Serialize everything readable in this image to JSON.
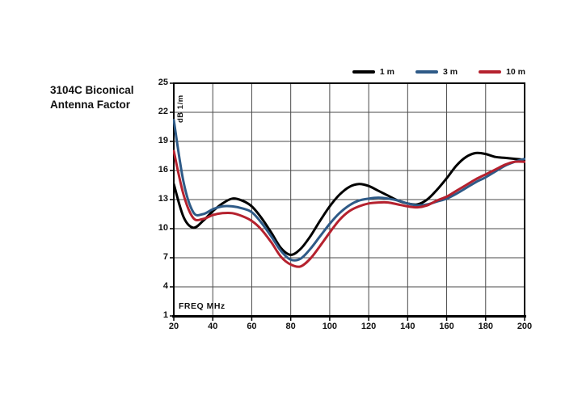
{
  "title": {
    "line1": "3104C Biconical",
    "line2": "Antenna Factor"
  },
  "chart_data": {
    "type": "line",
    "title": "3104C Biconical Antenna Factor",
    "xlabel": "FREQ MHz",
    "ylabel": "dB 1/m",
    "xlim": [
      20,
      200
    ],
    "ylim": [
      1,
      25
    ],
    "x_ticks": [
      20,
      40,
      60,
      80,
      100,
      120,
      140,
      160,
      180,
      200
    ],
    "y_ticks": [
      1,
      4,
      7,
      10,
      13,
      16,
      19,
      22,
      25
    ],
    "grid": true,
    "legend_position": "top-right",
    "x": [
      20,
      25,
      30,
      35,
      40,
      45,
      50,
      55,
      60,
      65,
      70,
      75,
      80,
      85,
      90,
      95,
      100,
      105,
      110,
      115,
      120,
      125,
      130,
      135,
      140,
      145,
      150,
      155,
      160,
      165,
      170,
      175,
      180,
      185,
      190,
      195,
      200
    ],
    "series": [
      {
        "name": "1 m",
        "color": "#000000",
        "values": [
          14.6,
          11.2,
          10.1,
          10.8,
          11.8,
          12.6,
          13.1,
          12.9,
          12.3,
          11.1,
          9.6,
          8.0,
          7.3,
          7.9,
          9.2,
          10.8,
          12.3,
          13.5,
          14.3,
          14.6,
          14.4,
          13.9,
          13.4,
          12.9,
          12.6,
          12.5,
          13.0,
          14.0,
          15.2,
          16.5,
          17.4,
          17.8,
          17.7,
          17.4,
          17.3,
          17.2,
          17.1
        ]
      },
      {
        "name": "3 m",
        "color": "#2e5a87",
        "values": [
          21.2,
          14.8,
          11.7,
          11.5,
          12.0,
          12.3,
          12.3,
          12.1,
          11.7,
          10.6,
          9.2,
          7.7,
          6.8,
          6.9,
          7.9,
          9.2,
          10.5,
          11.6,
          12.4,
          12.9,
          13.1,
          13.2,
          13.1,
          12.9,
          12.6,
          12.4,
          12.5,
          12.8,
          13.1,
          13.6,
          14.2,
          14.8,
          15.3,
          15.9,
          16.5,
          16.9,
          17.2
        ]
      },
      {
        "name": "10 m",
        "color": "#b5212e",
        "values": [
          18.0,
          13.5,
          11.1,
          11.0,
          11.4,
          11.6,
          11.6,
          11.3,
          10.8,
          9.9,
          8.6,
          7.1,
          6.3,
          6.1,
          6.9,
          8.2,
          9.6,
          10.9,
          11.8,
          12.3,
          12.6,
          12.7,
          12.7,
          12.5,
          12.3,
          12.2,
          12.4,
          12.9,
          13.3,
          13.9,
          14.5,
          15.1,
          15.6,
          16.1,
          16.6,
          16.9,
          16.9
        ]
      }
    ],
    "style": {
      "grid_color": "#4a4a4a",
      "border_color": "#000000",
      "background": "#ffffff",
      "line_width": 3
    }
  }
}
